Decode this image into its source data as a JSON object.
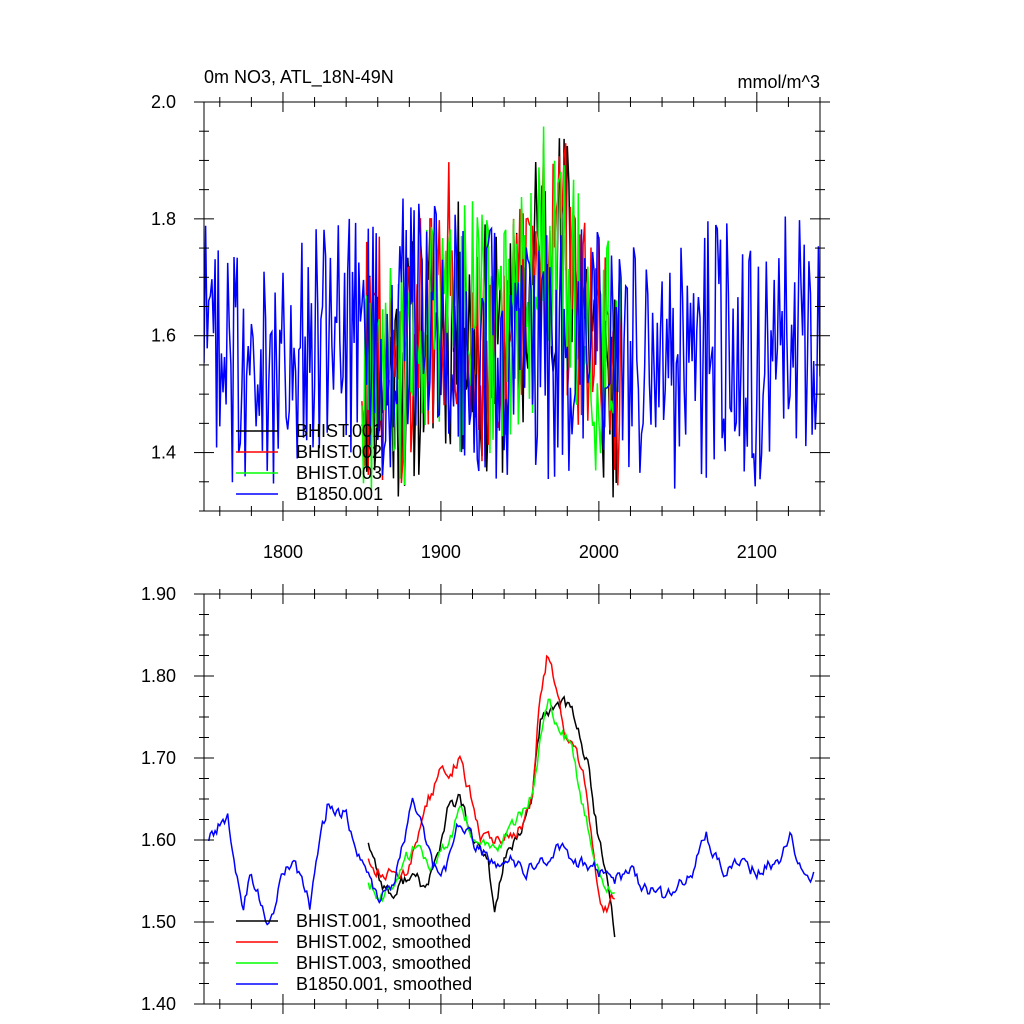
{
  "figure": {
    "title_left": "0m NO3, ATL_18N-49N",
    "title_right": "mmol/m^3"
  },
  "chart_data": [
    {
      "type": "line",
      "title": "0m NO3, ATL_18N-49N",
      "units": "mmol/m^3",
      "xlim": [
        1750,
        2140
      ],
      "ylim": [
        1.3,
        2.0
      ],
      "x_ticks": [
        1800,
        1900,
        2000,
        2100
      ],
      "x_tick_labels": [
        "1800",
        "1900",
        "2000",
        "2100"
      ],
      "y_ticks": [
        1.4,
        1.6,
        1.8,
        2.0
      ],
      "y_tick_labels": [
        "1.4",
        "1.6",
        "1.8",
        "2.0"
      ],
      "legend_position": "bottom-left",
      "series": [
        {
          "name": "BHIST.001",
          "color": "#000000",
          "start": 1850,
          "end": 2014,
          "anchors": [
            [
              1850,
              1.56
            ],
            [
              1870,
              1.52
            ],
            [
              1890,
              1.58
            ],
            [
              1905,
              1.62
            ],
            [
              1920,
              1.6
            ],
            [
              1935,
              1.56
            ],
            [
              1950,
              1.6
            ],
            [
              1960,
              1.72
            ],
            [
              1970,
              1.76
            ],
            [
              1985,
              1.74
            ],
            [
              1995,
              1.62
            ],
            [
              2005,
              1.52
            ],
            [
              2014,
              1.5
            ]
          ]
        },
        {
          "name": "BHIST.002",
          "color": "#ff0000",
          "start": 1850,
          "end": 2014,
          "anchors": [
            [
              1850,
              1.58
            ],
            [
              1870,
              1.54
            ],
            [
              1885,
              1.62
            ],
            [
              1900,
              1.67
            ],
            [
              1912,
              1.69
            ],
            [
              1925,
              1.6
            ],
            [
              1940,
              1.58
            ],
            [
              1955,
              1.64
            ],
            [
              1967,
              1.8
            ],
            [
              1975,
              1.76
            ],
            [
              1990,
              1.62
            ],
            [
              2005,
              1.52
            ],
            [
              2014,
              1.53
            ]
          ]
        },
        {
          "name": "BHIST.003",
          "color": "#00ff00",
          "start": 1850,
          "end": 2014,
          "anchors": [
            [
              1850,
              1.55
            ],
            [
              1870,
              1.54
            ],
            [
              1890,
              1.58
            ],
            [
              1905,
              1.6
            ],
            [
              1920,
              1.62
            ],
            [
              1935,
              1.58
            ],
            [
              1950,
              1.62
            ],
            [
              1965,
              1.74
            ],
            [
              1975,
              1.76
            ],
            [
              1985,
              1.66
            ],
            [
              1995,
              1.6
            ],
            [
              2005,
              1.56
            ],
            [
              2014,
              1.54
            ]
          ]
        },
        {
          "name": "B1850.001",
          "color": "#0000ff",
          "start": 1750,
          "end": 2140,
          "anchors": [
            [
              1750,
              1.6
            ],
            [
              1760,
              1.62
            ],
            [
              1770,
              1.55
            ],
            [
              1785,
              1.5
            ],
            [
              1800,
              1.56
            ],
            [
              1815,
              1.55
            ],
            [
              1830,
              1.62
            ],
            [
              1840,
              1.63
            ],
            [
              1860,
              1.56
            ],
            [
              1880,
              1.64
            ],
            [
              1890,
              1.6
            ],
            [
              1910,
              1.62
            ],
            [
              1925,
              1.58
            ],
            [
              1950,
              1.56
            ],
            [
              1975,
              1.58
            ],
            [
              2000,
              1.56
            ],
            [
              2030,
              1.54
            ],
            [
              2060,
              1.56
            ],
            [
              2080,
              1.6
            ],
            [
              2100,
              1.56
            ],
            [
              2125,
              1.6
            ],
            [
              2140,
              1.56
            ]
          ]
        }
      ]
    },
    {
      "type": "line",
      "xlim": [
        1750,
        2140
      ],
      "ylim": [
        1.4,
        1.9
      ],
      "x_ticks": [
        1800,
        1900,
        2000,
        2100
      ],
      "y_ticks": [
        1.4,
        1.5,
        1.6,
        1.7,
        1.8,
        1.9
      ],
      "y_tick_labels": [
        "1.40",
        "1.50",
        "1.60",
        "1.70",
        "1.80",
        "1.90"
      ],
      "legend_position": "bottom-left",
      "series": [
        {
          "name": "BHIST.001, smoothed",
          "color": "#000000",
          "start": 1854,
          "end": 2010,
          "anchors": [
            [
              1854,
              1.6
            ],
            [
              1862,
              1.55
            ],
            [
              1870,
              1.53
            ],
            [
              1880,
              1.56
            ],
            [
              1890,
              1.54
            ],
            [
              1898,
              1.58
            ],
            [
              1905,
              1.64
            ],
            [
              1912,
              1.65
            ],
            [
              1920,
              1.6
            ],
            [
              1930,
              1.57
            ],
            [
              1934,
              1.51
            ],
            [
              1940,
              1.58
            ],
            [
              1950,
              1.6
            ],
            [
              1958,
              1.66
            ],
            [
              1963,
              1.74
            ],
            [
              1970,
              1.76
            ],
            [
              1976,
              1.77
            ],
            [
              1985,
              1.75
            ],
            [
              1993,
              1.69
            ],
            [
              2000,
              1.6
            ],
            [
              2005,
              1.55
            ],
            [
              2010,
              1.49
            ]
          ]
        },
        {
          "name": "BHIST.002, smoothed",
          "color": "#ff0000",
          "start": 1854,
          "end": 2010,
          "anchors": [
            [
              1854,
              1.58
            ],
            [
              1862,
              1.56
            ],
            [
              1870,
              1.56
            ],
            [
              1878,
              1.56
            ],
            [
              1885,
              1.6
            ],
            [
              1892,
              1.65
            ],
            [
              1900,
              1.68
            ],
            [
              1907,
              1.69
            ],
            [
              1912,
              1.7
            ],
            [
              1918,
              1.66
            ],
            [
              1925,
              1.61
            ],
            [
              1935,
              1.6
            ],
            [
              1945,
              1.61
            ],
            [
              1953,
              1.62
            ],
            [
              1958,
              1.66
            ],
            [
              1962,
              1.76
            ],
            [
              1967,
              1.82
            ],
            [
              1972,
              1.79
            ],
            [
              1978,
              1.74
            ],
            [
              1985,
              1.72
            ],
            [
              1992,
              1.66
            ],
            [
              1997,
              1.58
            ],
            [
              2001,
              1.52
            ],
            [
              2005,
              1.51
            ],
            [
              2010,
              1.53
            ]
          ]
        },
        {
          "name": "BHIST.003, smoothed",
          "color": "#00ff00",
          "start": 1854,
          "end": 2010,
          "anchors": [
            [
              1854,
              1.55
            ],
            [
              1862,
              1.53
            ],
            [
              1870,
              1.54
            ],
            [
              1878,
              1.58
            ],
            [
              1885,
              1.59
            ],
            [
              1892,
              1.56
            ],
            [
              1900,
              1.58
            ],
            [
              1907,
              1.6
            ],
            [
              1913,
              1.64
            ],
            [
              1920,
              1.6
            ],
            [
              1930,
              1.59
            ],
            [
              1940,
              1.6
            ],
            [
              1950,
              1.63
            ],
            [
              1958,
              1.66
            ],
            [
              1964,
              1.74
            ],
            [
              1968,
              1.77
            ],
            [
              1975,
              1.73
            ],
            [
              1982,
              1.72
            ],
            [
              1988,
              1.66
            ],
            [
              1995,
              1.6
            ],
            [
              2002,
              1.55
            ],
            [
              2010,
              1.54
            ]
          ]
        },
        {
          "name": "B1850.001, smoothed",
          "color": "#0000ff",
          "start": 1753,
          "end": 2136,
          "anchors": [
            [
              1753,
              1.6
            ],
            [
              1760,
              1.62
            ],
            [
              1765,
              1.63
            ],
            [
              1770,
              1.56
            ],
            [
              1775,
              1.52
            ],
            [
              1780,
              1.56
            ],
            [
              1785,
              1.53
            ],
            [
              1790,
              1.5
            ],
            [
              1795,
              1.52
            ],
            [
              1800,
              1.56
            ],
            [
              1807,
              1.57
            ],
            [
              1812,
              1.55
            ],
            [
              1817,
              1.52
            ],
            [
              1822,
              1.58
            ],
            [
              1828,
              1.64
            ],
            [
              1835,
              1.64
            ],
            [
              1840,
              1.63
            ],
            [
              1845,
              1.59
            ],
            [
              1852,
              1.56
            ],
            [
              1860,
              1.53
            ],
            [
              1870,
              1.55
            ],
            [
              1878,
              1.61
            ],
            [
              1882,
              1.65
            ],
            [
              1888,
              1.62
            ],
            [
              1895,
              1.57
            ],
            [
              1903,
              1.56
            ],
            [
              1910,
              1.61
            ],
            [
              1917,
              1.61
            ],
            [
              1922,
              1.59
            ],
            [
              1930,
              1.58
            ],
            [
              1938,
              1.56
            ],
            [
              1945,
              1.58
            ],
            [
              1952,
              1.56
            ],
            [
              1960,
              1.57
            ],
            [
              1968,
              1.58
            ],
            [
              1975,
              1.59
            ],
            [
              1982,
              1.58
            ],
            [
              1990,
              1.57
            ],
            [
              2000,
              1.56
            ],
            [
              2010,
              1.55
            ],
            [
              2020,
              1.56
            ],
            [
              2030,
              1.54
            ],
            [
              2040,
              1.53
            ],
            [
              2050,
              1.54
            ],
            [
              2060,
              1.56
            ],
            [
              2068,
              1.61
            ],
            [
              2073,
              1.58
            ],
            [
              2080,
              1.56
            ],
            [
              2090,
              1.58
            ],
            [
              2100,
              1.56
            ],
            [
              2108,
              1.57
            ],
            [
              2115,
              1.58
            ],
            [
              2122,
              1.61
            ],
            [
              2128,
              1.56
            ],
            [
              2136,
              1.56
            ]
          ]
        }
      ]
    }
  ]
}
